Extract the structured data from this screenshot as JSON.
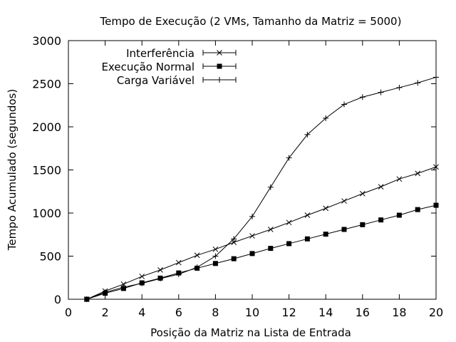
{
  "chart_data": {
    "type": "line",
    "title": "Tempo de Execução (2 VMs, Tamanho da Matriz = 5000)",
    "xlabel": "Posição da Matriz na Lista de Entrada",
    "ylabel": "Tempo Acumulado (segundos)",
    "xlim": [
      0,
      20
    ],
    "ylim": [
      0,
      3000
    ],
    "xticks": [
      0,
      2,
      4,
      6,
      8,
      10,
      12,
      14,
      16,
      18,
      20
    ],
    "yticks": [
      0,
      500,
      1000,
      1500,
      2000,
      2500,
      3000
    ],
    "grid": false,
    "legend_position": "top-left",
    "x": [
      1,
      2,
      3,
      4,
      5,
      6,
      7,
      8,
      9,
      10,
      11,
      12,
      13,
      14,
      15,
      16,
      17,
      18,
      19,
      20
    ],
    "series": [
      {
        "name": "Interferência",
        "marker": "x",
        "color": "#000000",
        "values": [
          0,
          95,
          175,
          265,
          340,
          425,
          510,
          580,
          660,
          735,
          810,
          890,
          975,
          1055,
          1140,
          1225,
          1305,
          1395,
          1460,
          1535
        ]
      },
      {
        "name": "Execução Normal",
        "marker": "square",
        "color": "#000000",
        "values": [
          0,
          70,
          125,
          190,
          245,
          305,
          360,
          415,
          470,
          530,
          590,
          645,
          700,
          755,
          810,
          865,
          920,
          975,
          1040,
          1090
        ]
      },
      {
        "name": "Carga Variável",
        "marker": "plus",
        "color": "#000000",
        "values": [
          0,
          80,
          140,
          185,
          240,
          290,
          370,
          500,
          700,
          960,
          1300,
          1640,
          1910,
          2100,
          2260,
          2345,
          2400,
          2455,
          2510,
          2575
        ]
      }
    ]
  }
}
